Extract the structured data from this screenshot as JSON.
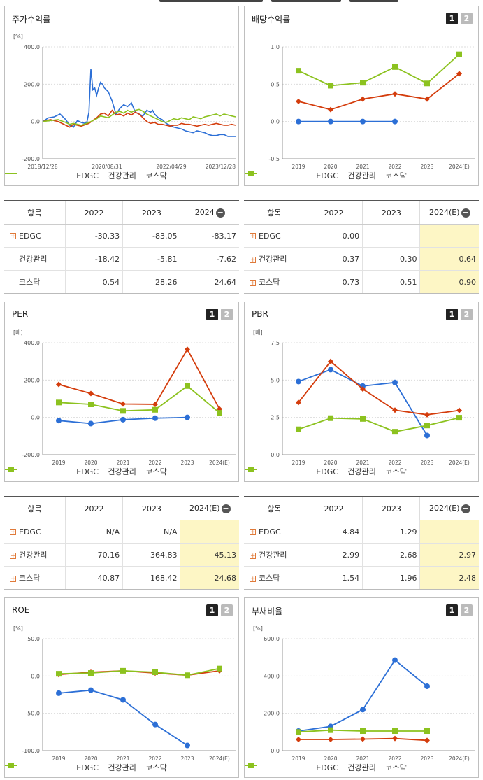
{
  "colors": {
    "edgc": "#2c6fd6",
    "health": "#d43c0c",
    "kosdaq": "#8cc21f"
  },
  "legend": [
    "EDGC",
    "건강관리",
    "코스닥"
  ],
  "pages": {
    "one": "1",
    "two": "2"
  },
  "panels": {
    "stock": {
      "title": "주가수익률"
    },
    "dividend": {
      "title": "배당수익률"
    },
    "per": {
      "title": "PER"
    },
    "pbr": {
      "title": "PBR"
    },
    "roe": {
      "title": "ROE"
    },
    "debt": {
      "title": "부채비율"
    }
  },
  "tables": {
    "stock": {
      "headers": [
        "항목",
        "2022",
        "2023",
        "2024"
      ],
      "rows": [
        {
          "name": "EDGC",
          "plus": true,
          "values": [
            "-30.33",
            "-83.05",
            "-83.17"
          ]
        },
        {
          "name": "건강관리",
          "plus": false,
          "values": [
            "-18.42",
            "-5.81",
            "-7.62"
          ]
        },
        {
          "name": "코스닥",
          "plus": false,
          "values": [
            "0.54",
            "28.26",
            "24.64"
          ]
        }
      ]
    },
    "dividend": {
      "headers": [
        "항목",
        "2022",
        "2023",
        "2024(E)"
      ],
      "rows": [
        {
          "name": "EDGC",
          "plus": true,
          "values": [
            "0.00",
            "",
            ""
          ]
        },
        {
          "name": "건강관리",
          "plus": true,
          "values": [
            "0.37",
            "0.30",
            "0.64"
          ]
        },
        {
          "name": "코스닥",
          "plus": true,
          "values": [
            "0.73",
            "0.51",
            "0.90"
          ]
        }
      ]
    },
    "per": {
      "headers": [
        "항목",
        "2022",
        "2023",
        "2024(E)"
      ],
      "rows": [
        {
          "name": "EDGC",
          "plus": true,
          "values": [
            "N/A",
            "N/A",
            ""
          ]
        },
        {
          "name": "건강관리",
          "plus": true,
          "values": [
            "70.16",
            "364.83",
            "45.13"
          ]
        },
        {
          "name": "코스닥",
          "plus": true,
          "values": [
            "40.87",
            "168.42",
            "24.68"
          ]
        }
      ]
    },
    "pbr": {
      "headers": [
        "항목",
        "2022",
        "2023",
        "2024(E)"
      ],
      "rows": [
        {
          "name": "EDGC",
          "plus": true,
          "values": [
            "4.84",
            "1.29",
            ""
          ]
        },
        {
          "name": "건강관리",
          "plus": true,
          "values": [
            "2.99",
            "2.68",
            "2.97"
          ]
        },
        {
          "name": "코스닥",
          "plus": true,
          "values": [
            "1.54",
            "1.96",
            "2.48"
          ]
        }
      ]
    }
  },
  "chart_data": [
    {
      "id": "stock",
      "type": "line",
      "title": "주가수익률",
      "unit": "[%]",
      "ylim": [
        -200,
        400
      ],
      "yticks": [
        "400.0",
        "200.0",
        "0.0",
        "-200.0"
      ],
      "xticks": [
        "2018/12/28",
        "2020/08/31",
        "2022/04/29",
        "2023/12/28"
      ],
      "x_range": [
        0,
        100
      ],
      "series": [
        {
          "name": "EDGC",
          "x": [
            0,
            3,
            6,
            9,
            12,
            14,
            16,
            18,
            20,
            22,
            23,
            24,
            25,
            25.5,
            26,
            27,
            28,
            29,
            30,
            31,
            32,
            34,
            36,
            38,
            40,
            42,
            44,
            46,
            48,
            50,
            52,
            54,
            56,
            57,
            58,
            60,
            62,
            64,
            66,
            68,
            70,
            72,
            74,
            76,
            78,
            80,
            82,
            84,
            86,
            88,
            90,
            92,
            94,
            96,
            98,
            100
          ],
          "y": [
            0,
            20,
            25,
            40,
            10,
            -20,
            -30,
            5,
            -5,
            -10,
            0,
            50,
            280,
            230,
            170,
            180,
            140,
            180,
            210,
            200,
            180,
            160,
            110,
            40,
            70,
            90,
            80,
            100,
            50,
            40,
            30,
            60,
            50,
            60,
            40,
            20,
            10,
            -10,
            -20,
            -30,
            -35,
            -40,
            -50,
            -55,
            -60,
            -50,
            -55,
            -60,
            -70,
            -75,
            -75,
            -70,
            -70,
            -80,
            -80,
            -80
          ]
        },
        {
          "name": "건강관리",
          "x": [
            0,
            4,
            8,
            12,
            14,
            16,
            18,
            20,
            24,
            26,
            28,
            30,
            32,
            34,
            36,
            38,
            40,
            42,
            44,
            46,
            48,
            50,
            52,
            54,
            56,
            58,
            60,
            62,
            64,
            66,
            68,
            70,
            72,
            74,
            76,
            78,
            80,
            82,
            84,
            86,
            88,
            90,
            92,
            94,
            96,
            98,
            100
          ],
          "y": [
            0,
            10,
            0,
            -20,
            -30,
            -15,
            -20,
            -25,
            -10,
            5,
            20,
            40,
            45,
            30,
            60,
            35,
            40,
            30,
            45,
            35,
            50,
            40,
            20,
            0,
            -10,
            -5,
            -15,
            -15,
            -20,
            -25,
            -20,
            -20,
            -10,
            -15,
            -15,
            -20,
            -25,
            -20,
            -15,
            -20,
            -15,
            -10,
            -15,
            -20,
            -20,
            -15,
            -20
          ]
        },
        {
          "name": "코스닥",
          "x": [
            0,
            4,
            8,
            12,
            14,
            16,
            18,
            20,
            24,
            26,
            28,
            30,
            32,
            34,
            36,
            38,
            40,
            42,
            44,
            46,
            48,
            50,
            52,
            54,
            56,
            58,
            60,
            62,
            64,
            66,
            68,
            70,
            72,
            74,
            76,
            78,
            80,
            82,
            84,
            86,
            88,
            90,
            92,
            94,
            96,
            98,
            100
          ],
          "y": [
            0,
            5,
            10,
            -5,
            -15,
            -10,
            -15,
            -20,
            -5,
            5,
            15,
            30,
            25,
            20,
            35,
            50,
            55,
            45,
            60,
            50,
            60,
            65,
            55,
            40,
            30,
            20,
            10,
            0,
            -5,
            5,
            15,
            10,
            20,
            15,
            10,
            25,
            20,
            15,
            25,
            30,
            35,
            40,
            30,
            40,
            35,
            30,
            25
          ]
        }
      ]
    },
    {
      "id": "dividend",
      "type": "line",
      "title": "배당수익률",
      "unit": "",
      "ylim": [
        -0.5,
        1.0
      ],
      "yticks": [
        "1.0",
        "0.5",
        "0.0",
        "-0.5"
      ],
      "categories": [
        "2019",
        "2020",
        "2021",
        "2022",
        "2023",
        "2024(E)"
      ],
      "series": [
        {
          "name": "EDGC",
          "values": [
            0,
            0,
            0,
            0,
            null,
            null
          ]
        },
        {
          "name": "건강관리",
          "values": [
            0.27,
            0.16,
            0.3,
            0.37,
            0.3,
            0.64
          ]
        },
        {
          "name": "코스닥",
          "values": [
            0.68,
            0.48,
            0.52,
            0.73,
            0.51,
            0.9
          ]
        }
      ]
    },
    {
      "id": "per",
      "type": "line",
      "title": "PER",
      "unit": "[배]",
      "ylim": [
        -200,
        400
      ],
      "yticks": [
        "400.0",
        "200.0",
        "0.0",
        "-200.0"
      ],
      "categories": [
        "2019",
        "2020",
        "2021",
        "2022",
        "2023",
        "2024(E)"
      ],
      "series": [
        {
          "name": "EDGC",
          "values": [
            -17,
            -33,
            -12,
            -4,
            0,
            null
          ]
        },
        {
          "name": "건강관리",
          "values": [
            177,
            128,
            72,
            70.16,
            364.83,
            45.13
          ]
        },
        {
          "name": "코스닥",
          "values": [
            80,
            70,
            35,
            40.87,
            168.42,
            24.68
          ]
        }
      ]
    },
    {
      "id": "pbr",
      "type": "line",
      "title": "PBR",
      "unit": "[배]",
      "ylim": [
        0,
        7.5
      ],
      "yticks": [
        "7.5",
        "5.0",
        "2.5",
        "0.0"
      ],
      "categories": [
        "2019",
        "2020",
        "2021",
        "2022",
        "2023",
        "2024(E)"
      ],
      "series": [
        {
          "name": "EDGC",
          "values": [
            4.9,
            5.7,
            4.6,
            4.84,
            1.29,
            null
          ]
        },
        {
          "name": "건강관리",
          "values": [
            3.5,
            6.25,
            4.4,
            2.99,
            2.68,
            2.97
          ]
        },
        {
          "name": "코스닥",
          "values": [
            1.7,
            2.45,
            2.4,
            1.54,
            1.96,
            2.48
          ]
        }
      ]
    },
    {
      "id": "roe",
      "type": "line",
      "title": "ROE",
      "unit": "[%]",
      "ylim": [
        -100,
        50
      ],
      "yticks": [
        "50.0",
        "0.0",
        "-50.0",
        "-100.0"
      ],
      "categories": [
        "2019",
        "2020",
        "2021",
        "2022",
        "2023",
        "2024(E)"
      ],
      "series": [
        {
          "name": "EDGC",
          "values": [
            -23,
            -19,
            -32,
            -65,
            -93,
            null
          ]
        },
        {
          "name": "건강관리",
          "values": [
            2,
            5,
            7,
            4,
            1,
            7
          ]
        },
        {
          "name": "코스닥",
          "values": [
            3,
            4,
            7,
            5,
            1,
            10
          ]
        }
      ]
    },
    {
      "id": "debt",
      "type": "line",
      "title": "부채비율",
      "unit": "[%]",
      "ylim": [
        0,
        600
      ],
      "yticks": [
        "600.0",
        "400.0",
        "200.0",
        "0.0"
      ],
      "categories": [
        "2019",
        "2020",
        "2021",
        "2022",
        "2023",
        "2024(E)"
      ],
      "series": [
        {
          "name": "EDGC",
          "values": [
            105,
            130,
            220,
            485,
            345,
            null
          ]
        },
        {
          "name": "건강관리",
          "values": [
            60,
            60,
            62,
            65,
            55,
            null
          ]
        },
        {
          "name": "코스닥",
          "values": [
            100,
            110,
            105,
            105,
            105,
            null
          ]
        }
      ]
    }
  ]
}
